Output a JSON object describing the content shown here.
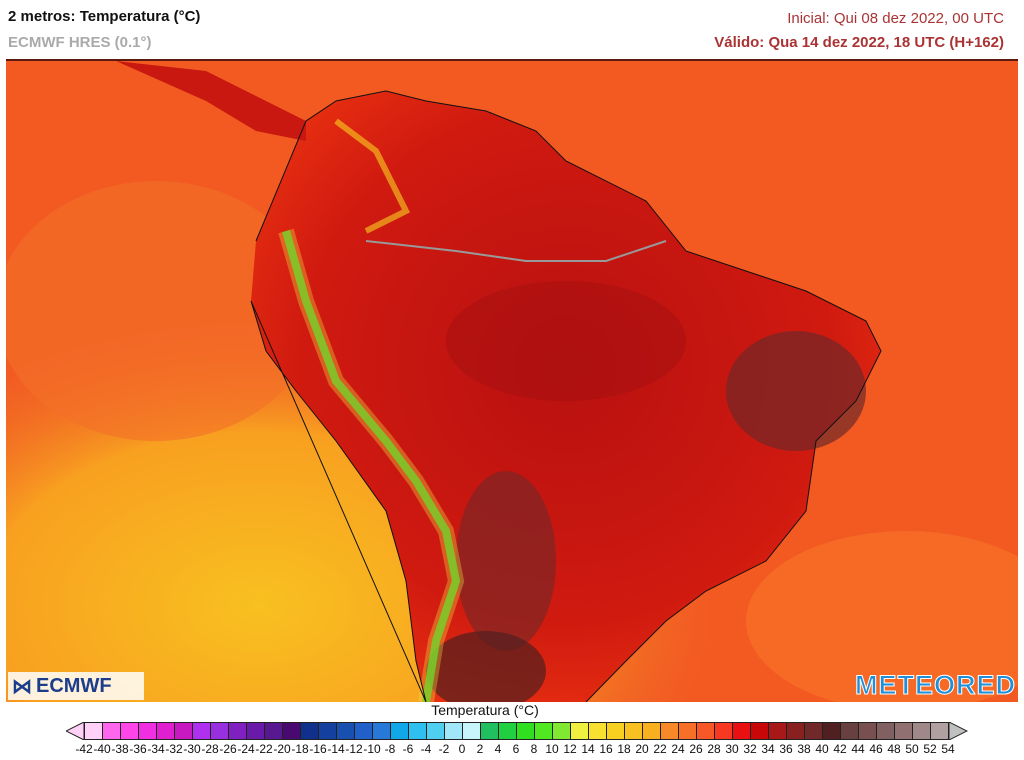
{
  "header": {
    "title": "2 metros: Temperatura (°C)",
    "model": "ECMWF HRES (0.1°)",
    "initial": "Inicial: Qui 08 dez 2022, 00 UTC",
    "valid": "Válido: Qua 14 dez 2022, 18 UTC (H+162)"
  },
  "logos": {
    "left": "ECMWF",
    "right": "METEORED"
  },
  "legend": {
    "title": "Temperatura (°C)",
    "labels": [
      -42,
      -40,
      -38,
      -36,
      -34,
      -32,
      -30,
      -28,
      -26,
      -24,
      -22,
      -20,
      -18,
      -16,
      -14,
      -12,
      -10,
      -8,
      -6,
      -4,
      -2,
      0,
      2,
      4,
      6,
      8,
      10,
      12,
      14,
      16,
      18,
      20,
      22,
      24,
      26,
      28,
      30,
      32,
      34,
      36,
      38,
      40,
      42,
      44,
      46,
      48,
      50,
      52,
      54
    ],
    "colors": [
      "#ffd0f8",
      "#ff66ee",
      "#ff44e8",
      "#f030e0",
      "#e020d0",
      "#c818c0",
      "#b030f0",
      "#9830e0",
      "#8020c0",
      "#6a1aa8",
      "#581890",
      "#480a70",
      "#10308c",
      "#1440a0",
      "#1850b0",
      "#2060c8",
      "#2878d8",
      "#10a8e8",
      "#30c0f0",
      "#50d0f0",
      "#a0e8f8",
      "#c8f4fc",
      "#20c060",
      "#20d040",
      "#30e020",
      "#50e820",
      "#80e830",
      "#f0f040",
      "#f8e030",
      "#f8d020",
      "#f8c020",
      "#f8b020",
      "#f88828",
      "#f87028",
      "#f85828",
      "#f83820",
      "#e81010",
      "#c80808",
      "#a81818",
      "#882020",
      "#702828",
      "#502020",
      "#684040",
      "#785050",
      "#806060",
      "#907070",
      "#a08888",
      "#b0a0a0"
    ],
    "under_color": "#ffd0f8",
    "over_color": "#c0c0c0"
  }
}
